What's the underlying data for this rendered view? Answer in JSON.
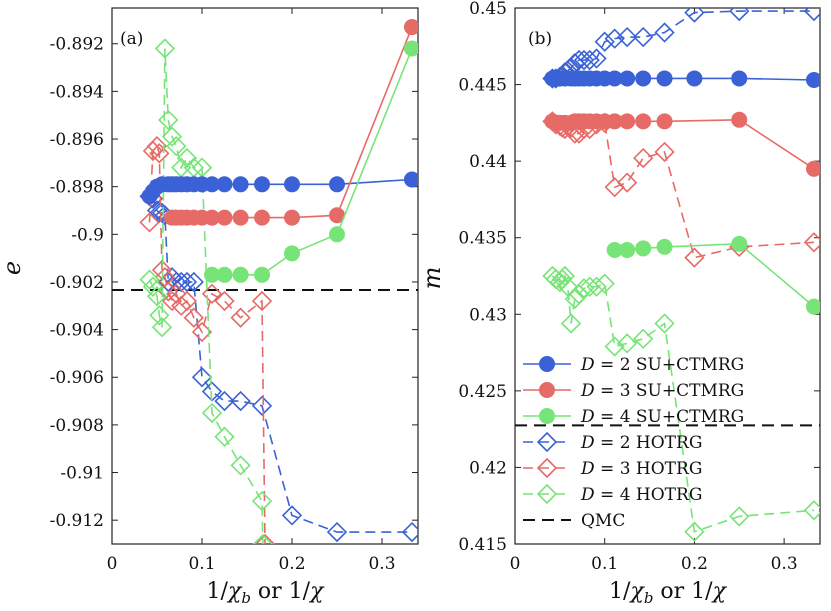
{
  "colors": {
    "d2": "#3a62d6",
    "d3": "#e66a66",
    "d4": "#77e477",
    "qmc": "#111111",
    "axis": "#222222"
  },
  "chart_data": [
    {
      "type": "line",
      "panel_label": "(a)",
      "ylabel": "e",
      "xlabel": "1/χ_b or 1/χ",
      "xlabel_parts": [
        "1/",
        "χ",
        "b",
        " or 1/",
        "χ"
      ],
      "xlim": [
        0,
        0.34
      ],
      "ylim": [
        -0.913,
        -0.8905
      ],
      "xticks": [
        0,
        0.1,
        0.2,
        0.3
      ],
      "xtick_labels": [
        "0",
        "0.1",
        "0.2",
        "0.3"
      ],
      "yticks": [
        -0.892,
        -0.894,
        -0.896,
        -0.898,
        -0.9,
        -0.902,
        -0.904,
        -0.906,
        -0.908,
        -0.91,
        -0.912
      ],
      "ytick_labels": [
        "-0.892",
        "-0.894",
        "-0.896",
        "-0.898",
        "-0.9",
        "-0.902",
        "-0.904",
        "-0.906",
        "-0.908",
        "-0.91",
        "-0.912"
      ],
      "series": [
        {
          "name": "D = 2 SU+CTMRG",
          "D": "2",
          "method": "SU+CTMRG",
          "color_key": "d2",
          "marker": "circle",
          "dashed": false,
          "x": [
            0.0417,
            0.0455,
            0.05,
            0.0556,
            0.0625,
            0.0667,
            0.0714,
            0.0769,
            0.0833,
            0.0909,
            0.1,
            0.1111,
            0.125,
            0.1429,
            0.1667,
            0.2,
            0.25,
            0.3333
          ],
          "y": [
            -0.8984,
            -0.8982,
            -0.898,
            -0.8979,
            -0.8979,
            -0.8979,
            -0.8979,
            -0.8979,
            -0.8979,
            -0.8979,
            -0.8979,
            -0.8979,
            -0.8979,
            -0.8979,
            -0.8979,
            -0.8979,
            -0.8979,
            -0.8977
          ]
        },
        {
          "name": "D = 3 SU+CTMRG",
          "D": "3",
          "method": "SU+CTMRG",
          "color_key": "d3",
          "marker": "circle",
          "dashed": false,
          "x": [
            0.0667,
            0.0714,
            0.0769,
            0.0833,
            0.0909,
            0.1,
            0.1111,
            0.125,
            0.1429,
            0.1667,
            0.2,
            0.25,
            0.3333
          ],
          "y": [
            -0.8993,
            -0.8993,
            -0.8993,
            -0.8993,
            -0.8993,
            -0.8993,
            -0.8993,
            -0.8993,
            -0.8993,
            -0.8993,
            -0.8993,
            -0.8992,
            -0.8913
          ]
        },
        {
          "name": "D = 4 SU+CTMRG",
          "D": "4",
          "method": "SU+CTMRG",
          "color_key": "d4",
          "marker": "circle",
          "dashed": false,
          "x": [
            0.1111,
            0.125,
            0.1429,
            0.1667,
            0.2,
            0.25,
            0.3333
          ],
          "y": [
            -0.9017,
            -0.9017,
            -0.9017,
            -0.9017,
            -0.9008,
            -0.9,
            -0.8922
          ]
        },
        {
          "name": "D = 2 HOTRG",
          "D": "2",
          "method": "HOTRG",
          "color_key": "d2",
          "marker": "diamond",
          "dashed": true,
          "x": [
            0.0417,
            0.0455,
            0.05,
            0.0526,
            0.0556,
            0.0588,
            0.0625,
            0.0667,
            0.0714,
            0.0769,
            0.0833,
            0.0909,
            0.1,
            0.1111,
            0.125,
            0.1429,
            0.1667,
            0.2,
            0.25,
            0.3333
          ],
          "y": [
            -0.8984,
            -0.8985,
            -0.899,
            -0.8991,
            -0.8991,
            -0.8992,
            -0.902,
            -0.9018,
            -0.902,
            -0.902,
            -0.902,
            -0.902,
            -0.906,
            -0.9066,
            -0.907,
            -0.907,
            -0.9072,
            -0.9118,
            -0.9125,
            -0.9125
          ]
        },
        {
          "name": "D = 3 HOTRG",
          "D": "3",
          "method": "HOTRG",
          "color_key": "d3",
          "marker": "diamond",
          "dashed": true,
          "x": [
            0.0417,
            0.0455,
            0.05,
            0.0526,
            0.0556,
            0.0588,
            0.0625,
            0.0667,
            0.0714,
            0.0769,
            0.0833,
            0.0909,
            0.1,
            0.1111,
            0.125,
            0.1429,
            0.1667,
            0.17
          ],
          "y": [
            -0.8995,
            -0.8965,
            -0.8963,
            -0.8966,
            -0.9015,
            -0.9018,
            -0.9024,
            -0.9028,
            -0.9025,
            -0.903,
            -0.9028,
            -0.9035,
            -0.9041,
            -0.9025,
            -0.9028,
            -0.9035,
            -0.9028,
            -0.913
          ]
        },
        {
          "name": "D = 4 HOTRG",
          "D": "4",
          "method": "HOTRG",
          "color_key": "d4",
          "marker": "diamond",
          "dashed": true,
          "x": [
            0.0417,
            0.0455,
            0.05,
            0.0526,
            0.0556,
            0.0588,
            0.0625,
            0.0667,
            0.0714,
            0.0769,
            0.0833,
            0.0909,
            0.1,
            0.1111,
            0.125,
            0.1429,
            0.1667,
            0.1677
          ],
          "y": [
            -0.9019,
            -0.9022,
            -0.9026,
            -0.9034,
            -0.9039,
            -0.8922,
            -0.8952,
            -0.8959,
            -0.8963,
            -0.8972,
            -0.8968,
            -0.8972,
            -0.8972,
            -0.9075,
            -0.9085,
            -0.9097,
            -0.9112,
            -0.913
          ]
        }
      ],
      "reference": {
        "name": "QMC",
        "y": -0.90234,
        "dashed": true,
        "color_key": "qmc"
      }
    },
    {
      "type": "line",
      "panel_label": "(b)",
      "ylabel": "m",
      "xlabel": "1/χ_b or 1/χ",
      "xlabel_parts": [
        "1/",
        "χ",
        "b",
        " or 1/",
        "χ"
      ],
      "xlim": [
        0,
        0.34
      ],
      "ylim": [
        0.415,
        0.45
      ],
      "xticks": [
        0,
        0.1,
        0.2,
        0.3
      ],
      "xtick_labels": [
        "0",
        "0.1",
        "0.2",
        "0.3"
      ],
      "yticks": [
        0.45,
        0.445,
        0.44,
        0.435,
        0.43,
        0.425,
        0.42,
        0.415
      ],
      "ytick_labels": [
        "0.45",
        "0.445",
        "0.44",
        "0.435",
        "0.43",
        "0.425",
        "0.42",
        "0.415"
      ],
      "series": [
        {
          "name": "D = 2 SU+CTMRG",
          "D": "2",
          "method": "SU+CTMRG",
          "color_key": "d2",
          "marker": "circle",
          "dashed": false,
          "x": [
            0.0417,
            0.0455,
            0.05,
            0.0556,
            0.0625,
            0.0667,
            0.0714,
            0.0769,
            0.0833,
            0.0909,
            0.1,
            0.1111,
            0.125,
            0.1429,
            0.1667,
            0.2,
            0.25,
            0.3333
          ],
          "y": [
            0.4454,
            0.4454,
            0.4454,
            0.4454,
            0.4454,
            0.4454,
            0.4454,
            0.4454,
            0.4454,
            0.4454,
            0.4454,
            0.4454,
            0.4454,
            0.4454,
            0.4454,
            0.4454,
            0.4454,
            0.4453
          ]
        },
        {
          "name": "D = 3 SU+CTMRG",
          "D": "3",
          "method": "SU+CTMRG",
          "color_key": "d3",
          "marker": "circle",
          "dashed": false,
          "x": [
            0.0417,
            0.0455,
            0.05,
            0.0556,
            0.0625,
            0.0667,
            0.0714,
            0.0769,
            0.0833,
            0.0909,
            0.1,
            0.1111,
            0.125,
            0.1429,
            0.1667,
            0.25,
            0.3333
          ],
          "y": [
            0.4426,
            0.4425,
            0.4425,
            0.4425,
            0.4425,
            0.4426,
            0.4426,
            0.4426,
            0.4426,
            0.4426,
            0.4426,
            0.4426,
            0.4426,
            0.4426,
            0.4426,
            0.4427,
            0.4395
          ]
        },
        {
          "name": "D = 4 SU+CTMRG",
          "D": "4",
          "method": "SU+CTMRG",
          "color_key": "d4",
          "marker": "circle",
          "dashed": false,
          "x": [
            0.1111,
            0.125,
            0.1429,
            0.1667,
            0.25,
            0.3333
          ],
          "y": [
            0.4342,
            0.4342,
            0.4343,
            0.4344,
            0.4346,
            0.4305
          ]
        },
        {
          "name": "D = 2 HOTRG",
          "D": "2",
          "method": "HOTRG",
          "color_key": "d2",
          "marker": "diamond",
          "dashed": true,
          "x": [
            0.0417,
            0.0455,
            0.05,
            0.0526,
            0.0556,
            0.0588,
            0.0625,
            0.0667,
            0.0714,
            0.0769,
            0.0833,
            0.0909,
            0.1,
            0.1111,
            0.125,
            0.1429,
            0.1667,
            0.2,
            0.25,
            0.3333
          ],
          "y": [
            0.4454,
            0.4454,
            0.4455,
            0.4456,
            0.4458,
            0.4459,
            0.4461,
            0.4464,
            0.4466,
            0.4466,
            0.4466,
            0.4467,
            0.4478,
            0.448,
            0.4481,
            0.4481,
            0.4484,
            0.4497,
            0.4498,
            0.4498
          ]
        },
        {
          "name": "D = 3 HOTRG",
          "D": "3",
          "method": "HOTRG",
          "color_key": "d3",
          "marker": "diamond",
          "dashed": true,
          "x": [
            0.0417,
            0.0455,
            0.05,
            0.0526,
            0.0556,
            0.0588,
            0.0625,
            0.0667,
            0.0714,
            0.0769,
            0.0833,
            0.0909,
            0.1,
            0.1111,
            0.125,
            0.1429,
            0.1667,
            0.2,
            0.25,
            0.3333
          ],
          "y": [
            0.4426,
            0.4424,
            0.4423,
            0.4422,
            0.4421,
            0.4423,
            0.4422,
            0.4418,
            0.4418,
            0.4421,
            0.4421,
            0.4424,
            0.4425,
            0.4383,
            0.4386,
            0.4402,
            0.4406,
            0.4337,
            0.4344,
            0.4347
          ]
        },
        {
          "name": "D = 4 HOTRG",
          "D": "4",
          "method": "HOTRG",
          "color_key": "d4",
          "marker": "diamond",
          "dashed": true,
          "x": [
            0.0417,
            0.0455,
            0.05,
            0.0526,
            0.0556,
            0.0588,
            0.0625,
            0.0667,
            0.0714,
            0.0769,
            0.0833,
            0.0909,
            0.1,
            0.1111,
            0.125,
            0.1429,
            0.1667,
            0.2,
            0.25,
            0.3333
          ],
          "y": [
            0.4325,
            0.4323,
            0.4321,
            0.4323,
            0.4325,
            0.4318,
            0.4294,
            0.431,
            0.4313,
            0.4317,
            0.4318,
            0.4318,
            0.432,
            0.4279,
            0.4281,
            0.4284,
            0.4294,
            0.4158,
            0.4168,
            0.4172
          ]
        }
      ],
      "reference": {
        "name": "QMC",
        "y": 0.42275,
        "dashed": true,
        "color_key": "qmc"
      },
      "legend": {
        "placement": "bottom-left"
      }
    }
  ]
}
